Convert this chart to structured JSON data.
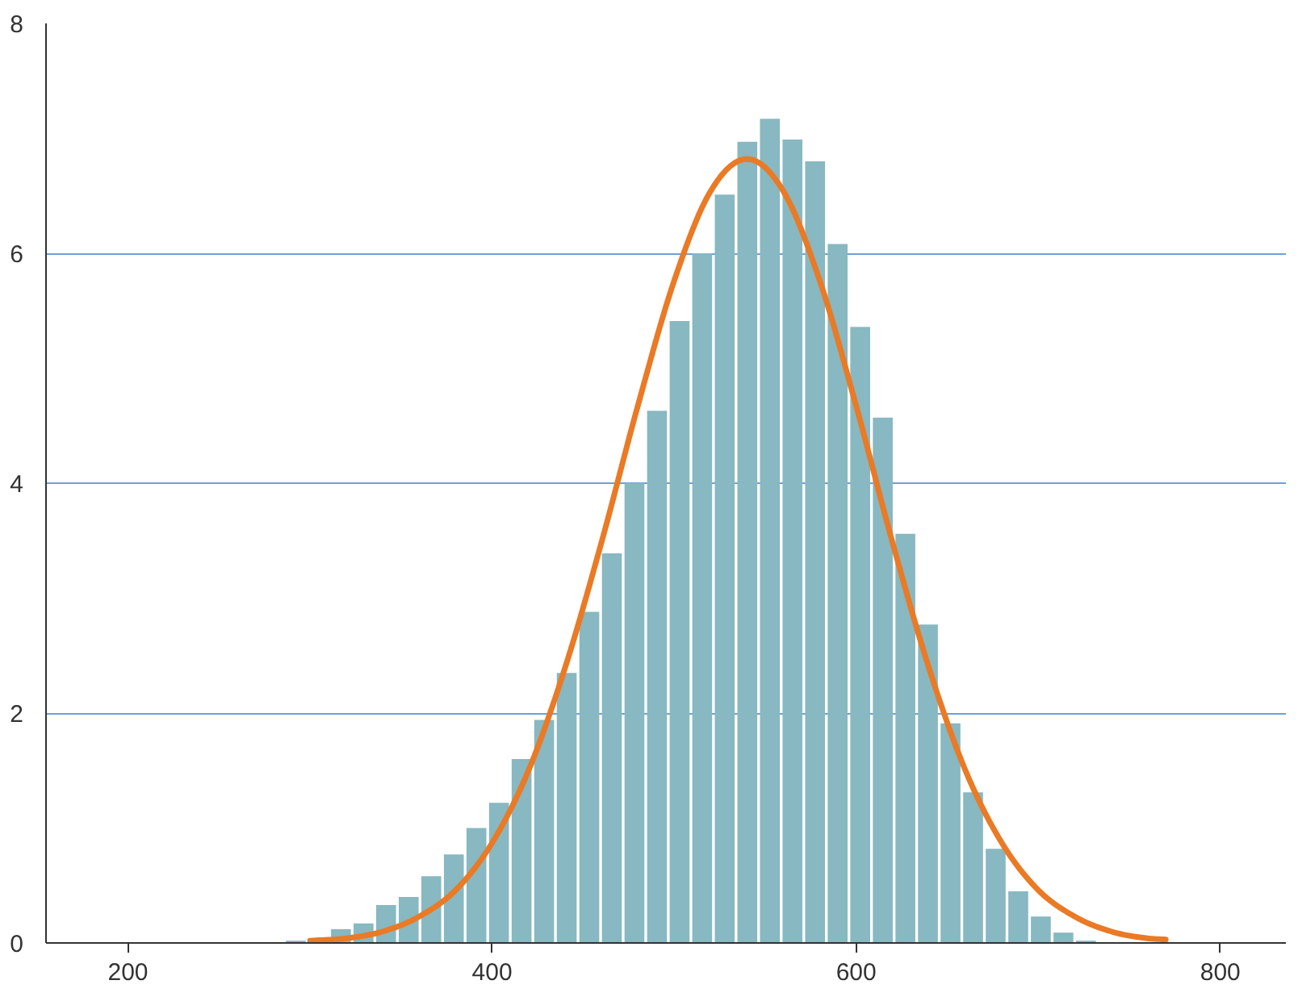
{
  "chart_data": {
    "type": "histogram",
    "bins": [
      286,
      298.4,
      310.8,
      323.2,
      335.6,
      348,
      360.4,
      372.8,
      385.2,
      397.6,
      410,
      422.4,
      434.8,
      447.2,
      459.6,
      472,
      484.4,
      496.8,
      509.2,
      521.6,
      534,
      546.4,
      558.8,
      571.2,
      583.6,
      596,
      608.4,
      620.8,
      633.2,
      645.6,
      658,
      670.4,
      682.8,
      695.2,
      707.6,
      720,
      732.4
    ],
    "values": [
      0.02,
      null,
      0.12,
      0.17,
      0.33,
      0.4,
      0.58,
      0.77,
      1.0,
      1.22,
      1.6,
      1.94,
      2.35,
      2.88,
      3.39,
      4.0,
      4.63,
      5.41,
      6.0,
      6.51,
      6.97,
      7.17,
      6.99,
      6.8,
      6.08,
      5.36,
      4.57,
      3.56,
      2.77,
      1.91,
      1.31,
      0.82,
      0.45,
      0.23,
      0.09,
      0.02
    ],
    "color": "#88b8c1",
    "series": [
      {
        "type": "line",
        "color": "#ea7a25",
        "x": [
          300,
          320,
          340,
          360,
          380,
          400,
          420,
          440,
          460,
          480,
          500,
          520,
          540,
          560,
          580,
          600,
          620,
          640,
          660,
          680,
          700,
          720,
          740,
          760,
          770
        ],
        "values": [
          0.02,
          0.04,
          0.1,
          0.23,
          0.46,
          0.87,
          1.5,
          2.39,
          3.48,
          4.67,
          5.76,
          6.54,
          6.82,
          6.54,
          5.76,
          4.67,
          3.48,
          2.39,
          1.5,
          0.87,
          0.46,
          0.23,
          0.1,
          0.04,
          0.03
        ]
      }
    ],
    "xlim": [
      155,
      836
    ],
    "ylim": [
      0,
      8
    ],
    "xticks": [
      200,
      400,
      600,
      800
    ],
    "yticks": [
      0,
      2,
      4,
      6,
      8
    ],
    "grid": "y"
  }
}
